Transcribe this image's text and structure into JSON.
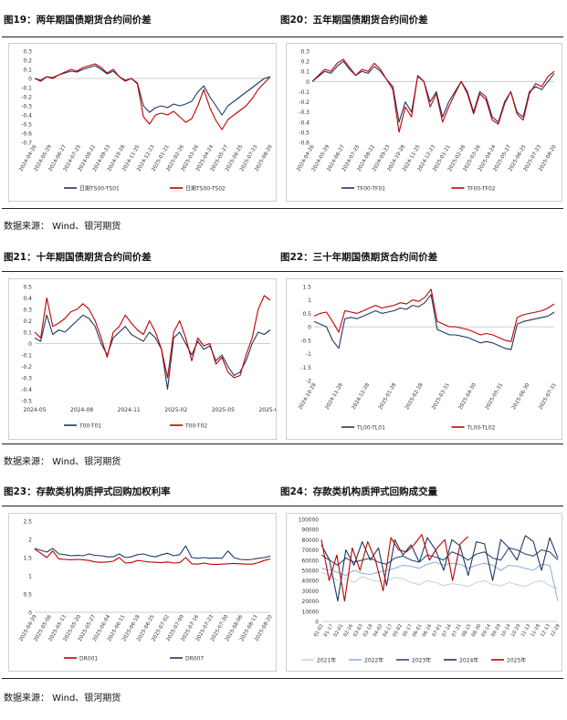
{
  "source_note": "数据来源： Wind、银河期货",
  "colors": {
    "navy": "#1f3864",
    "red": "#c00000",
    "zero": "#bfbfbf"
  },
  "chart_data": [
    {
      "id": "c19",
      "type": "line",
      "title": "图19：两年期国债期货合约间价差",
      "x_ticks": [
        "2024-04-26",
        "2024-05-29",
        "2024-06-27",
        "2024-07-25",
        "2024-08-22",
        "2024-09-23",
        "2024-10-28",
        "2024-11-25",
        "2024-12-23",
        "2025-01-21",
        "2025-02-26",
        "2025-03-26",
        "2025-04-24",
        "2025-05-27",
        "2025-06-25",
        "2025-07-23",
        "2025-08-20"
      ],
      "y_ticks": [
        0.3,
        0.2,
        0.1,
        0,
        -0.1,
        -0.2,
        -0.3,
        -0.4,
        -0.5,
        -0.6,
        -0.7
      ],
      "ylim": [
        -0.7,
        0.3
      ],
      "series": [
        {
          "name": "日期TS00-TS01",
          "color": "#1f3864",
          "values": [
            0,
            -0.02,
            0.02,
            0.01,
            0.04,
            0.06,
            0.08,
            0.07,
            0.1,
            0.12,
            0.14,
            0.1,
            0.05,
            0.08,
            0.02,
            -0.02,
            0.0,
            -0.05,
            -0.3,
            -0.37,
            -0.32,
            -0.3,
            -0.32,
            -0.28,
            -0.3,
            -0.28,
            -0.25,
            -0.15,
            -0.08,
            -0.2,
            -0.3,
            -0.4,
            -0.3,
            -0.25,
            -0.2,
            -0.15,
            -0.1,
            -0.05,
            0.0,
            0.02
          ]
        },
        {
          "name": "日期TS00-TS02",
          "color": "#c00000",
          "values": [
            0,
            -0.03,
            0.02,
            0.0,
            0.04,
            0.07,
            0.1,
            0.08,
            0.12,
            0.14,
            0.16,
            0.12,
            0.06,
            0.1,
            0.02,
            -0.03,
            0.0,
            -0.06,
            -0.42,
            -0.5,
            -0.4,
            -0.38,
            -0.4,
            -0.36,
            -0.42,
            -0.48,
            -0.44,
            -0.3,
            -0.12,
            -0.32,
            -0.46,
            -0.56,
            -0.45,
            -0.4,
            -0.35,
            -0.3,
            -0.22,
            -0.12,
            -0.05,
            0.02
          ]
        }
      ]
    },
    {
      "id": "c20",
      "type": "line",
      "title": "图20：五年期国债期货合约间价差",
      "x_ticks": [
        "2024-04-26",
        "2024-05-29",
        "2024-06-27",
        "2024-07-25",
        "2024-08-22",
        "2024-09-23",
        "2024-10-28",
        "2024-11-25",
        "2024-12-23",
        "2025-01-21",
        "2025-02-26",
        "2025-03-26",
        "2025-04-24",
        "2025-05-27",
        "2025-06-25",
        "2025-07-23",
        "2025-08-20"
      ],
      "y_ticks": [
        0.3,
        0.2,
        0.1,
        0,
        -0.1,
        -0.2,
        -0.3,
        -0.4,
        -0.5,
        -0.6
      ],
      "ylim": [
        -0.6,
        0.3
      ],
      "series": [
        {
          "name": "TF00-TF01",
          "color": "#1f3864",
          "values": [
            0,
            0.05,
            0.1,
            0.08,
            0.15,
            0.2,
            0.12,
            0.06,
            0.1,
            0.08,
            0.15,
            0.1,
            0.02,
            -0.05,
            -0.4,
            -0.2,
            -0.3,
            0.05,
            0.0,
            -0.2,
            -0.1,
            -0.35,
            -0.2,
            -0.1,
            0.0,
            -0.1,
            -0.3,
            -0.1,
            -0.15,
            -0.35,
            -0.4,
            -0.2,
            -0.1,
            -0.3,
            -0.35,
            -0.1,
            -0.05,
            -0.08,
            0.0,
            0.08
          ]
        },
        {
          "name": "TF00-TF02",
          "color": "#c00000",
          "values": [
            0,
            0.06,
            0.12,
            0.1,
            0.18,
            0.22,
            0.14,
            0.06,
            0.12,
            0.1,
            0.18,
            0.12,
            0.02,
            -0.08,
            -0.5,
            -0.25,
            -0.35,
            0.06,
            0.0,
            -0.25,
            -0.12,
            -0.4,
            -0.25,
            -0.12,
            0.0,
            -0.12,
            -0.32,
            -0.12,
            -0.18,
            -0.38,
            -0.42,
            -0.22,
            -0.1,
            -0.32,
            -0.38,
            -0.12,
            -0.02,
            -0.05,
            0.05,
            0.1
          ]
        }
      ]
    },
    {
      "id": "c21",
      "type": "line",
      "title": "图21：十年期国债期货合约间价差",
      "x_ticks": [
        "2024-05",
        "2024-08",
        "2024-11",
        "2025-02",
        "2025-05",
        "2025-08"
      ],
      "y_ticks": [
        0.5,
        0.4,
        0.3,
        0.2,
        0.1,
        0,
        -0.1,
        -0.2,
        -0.3,
        -0.4,
        -0.5
      ],
      "ylim": [
        -0.5,
        0.5
      ],
      "series": [
        {
          "name": "T00-T01",
          "color": "#1f3864",
          "values": [
            0.05,
            0.02,
            0.25,
            0.08,
            0.12,
            0.1,
            0.15,
            0.2,
            0.25,
            0.22,
            0.15,
            0.0,
            -0.1,
            0.05,
            0.1,
            0.15,
            0.08,
            0.05,
            0.02,
            0.1,
            0.05,
            -0.05,
            -0.4,
            0.05,
            0.1,
            0.0,
            -0.1,
            0.02,
            -0.05,
            -0.02,
            -0.15,
            -0.1,
            -0.2,
            -0.28,
            -0.25,
            -0.15,
            0.0,
            0.1,
            0.08,
            0.12
          ]
        },
        {
          "name": "T00-T02",
          "color": "#c00000",
          "values": [
            0.1,
            0.05,
            0.4,
            0.15,
            0.18,
            0.22,
            0.28,
            0.3,
            0.35,
            0.3,
            0.2,
            0.05,
            -0.12,
            0.1,
            0.15,
            0.25,
            0.18,
            0.12,
            0.08,
            0.2,
            0.1,
            -0.05,
            -0.3,
            0.1,
            0.2,
            0.05,
            -0.15,
            0.05,
            -0.02,
            0.0,
            -0.18,
            -0.12,
            -0.25,
            -0.3,
            -0.28,
            -0.1,
            0.05,
            0.3,
            0.42,
            0.38
          ]
        }
      ]
    },
    {
      "id": "c22",
      "type": "line",
      "title": "图22：三十年期国债期货合约间价差",
      "x_ticks": [
        "2024-10-28",
        "2024-11-28",
        "2024-12-28",
        "2025-01-28",
        "2025-02-28",
        "2025-03-31",
        "2025-04-30",
        "2025-05-31",
        "2025-06-30",
        "2025-07-31"
      ],
      "y_ticks": [
        1.5,
        1,
        0.5,
        0,
        -0.5,
        -1,
        -1.5,
        -2
      ],
      "ylim": [
        -2,
        1.5
      ],
      "series": [
        {
          "name": "TL00-TL01",
          "color": "#1f3864",
          "values": [
            0.2,
            0.1,
            0.0,
            -0.5,
            -0.8,
            0.3,
            0.35,
            0.3,
            0.4,
            0.5,
            0.6,
            0.5,
            0.55,
            0.6,
            0.7,
            0.65,
            0.8,
            0.75,
            0.9,
            1.2,
            -0.1,
            -0.2,
            -0.3,
            -0.3,
            -0.35,
            -0.4,
            -0.5,
            -0.6,
            -0.55,
            -0.6,
            -0.7,
            -0.8,
            -0.85,
            0.1,
            0.2,
            0.25,
            0.3,
            0.35,
            0.4,
            0.55
          ]
        },
        {
          "name": "TL00-TL02",
          "color": "#c00000",
          "values": [
            0.4,
            0.5,
            0.55,
            0.2,
            -0.2,
            0.6,
            0.55,
            0.5,
            0.6,
            0.7,
            0.8,
            0.7,
            0.75,
            0.8,
            0.9,
            0.85,
            1.0,
            0.95,
            1.1,
            1.4,
            0.2,
            0.1,
            0.0,
            0.0,
            -0.05,
            -0.1,
            -0.2,
            -0.3,
            -0.25,
            -0.3,
            -0.4,
            -0.5,
            -0.55,
            0.35,
            0.45,
            0.5,
            0.55,
            0.6,
            0.7,
            0.85
          ]
        }
      ]
    },
    {
      "id": "c23",
      "type": "line",
      "title": "图23：存款类机构质押式回购加权利率",
      "x_ticks": [
        "2025-04-29",
        "2025-05-06",
        "2025-05-13",
        "2025-05-20",
        "2025-05-27",
        "2025-06-04",
        "2025-06-11",
        "2025-06-18",
        "2025-06-25",
        "2025-07-02",
        "2025-07-09",
        "2025-07-16",
        "2025-07-23",
        "2025-07-30",
        "2025-08-06",
        "2025-08-13",
        "2025-08-20"
      ],
      "y_ticks": [
        2.5,
        2,
        1.5,
        1,
        0.5,
        0
      ],
      "ylim": [
        0,
        2.5
      ],
      "series": [
        {
          "name": "DR001",
          "color": "#c00000",
          "values": [
            1.73,
            1.62,
            1.5,
            1.68,
            1.46,
            1.45,
            1.44,
            1.45,
            1.44,
            1.42,
            1.38,
            1.37,
            1.38,
            1.4,
            1.5,
            1.35,
            1.36,
            1.42,
            1.4,
            1.38,
            1.37,
            1.36,
            1.38,
            1.35,
            1.36,
            1.5,
            1.33,
            1.32,
            1.35,
            1.32,
            1.31,
            1.32,
            1.33,
            1.34,
            1.33,
            1.32,
            1.32,
            1.36,
            1.42,
            1.46
          ]
        },
        {
          "name": "DR007",
          "color": "#1f3864",
          "values": [
            1.75,
            1.7,
            1.65,
            1.75,
            1.6,
            1.58,
            1.55,
            1.56,
            1.55,
            1.6,
            1.56,
            1.55,
            1.52,
            1.52,
            1.6,
            1.5,
            1.52,
            1.58,
            1.6,
            1.55,
            1.52,
            1.58,
            1.62,
            1.55,
            1.58,
            1.82,
            1.5,
            1.48,
            1.5,
            1.48,
            1.49,
            1.48,
            1.68,
            1.5,
            1.45,
            1.44,
            1.45,
            1.48,
            1.5,
            1.54
          ]
        }
      ]
    },
    {
      "id": "c24",
      "type": "line",
      "title": "图24：存款类机构质押式回购成交量",
      "x_ticks": [
        "01-02",
        "01-17",
        "02-01",
        "02-16",
        "03-03",
        "03-18",
        "04-02",
        "04-17",
        "05-02",
        "05-17",
        "06-01",
        "06-16",
        "07-01",
        "07-16",
        "07-31",
        "08-15",
        "08-30",
        "09-14",
        "09-29",
        "10-14",
        "10-29",
        "11-13",
        "11-28",
        "12-13",
        "12-28"
      ],
      "y_ticks": [
        100000,
        90000,
        80000,
        70000,
        60000,
        50000,
        40000,
        30000,
        20000,
        10000,
        0
      ],
      "ylim": [
        0,
        100000
      ],
      "series": [
        {
          "name": "2021年",
          "color": "#c9d3e6",
          "values": [
            48000,
            45000,
            40000,
            42000,
            38000,
            44000,
            41000,
            39000,
            40000,
            43000,
            42000,
            38000,
            36000,
            40000,
            38000,
            35000,
            37000,
            36000,
            34000,
            38000,
            40000,
            36000,
            35000,
            38000,
            36000,
            34000,
            38000,
            40000,
            35000,
            32000
          ]
        },
        {
          "name": "2022年",
          "color": "#8fb4de",
          "values": [
            52000,
            50000,
            48000,
            45000,
            50000,
            47000,
            46000,
            48000,
            50000,
            52000,
            55000,
            54000,
            52000,
            56000,
            58000,
            55000,
            57000,
            56000,
            52000,
            55000,
            57000,
            55000,
            50000,
            55000,
            54000,
            52000,
            50000,
            56000,
            55000,
            20000
          ]
        },
        {
          "name": "2023年",
          "color": "#2e4a7a",
          "values": [
            65000,
            60000,
            55000,
            62000,
            58000,
            60000,
            62000,
            58000,
            56000,
            62000,
            64000,
            60000,
            58000,
            65000,
            63000,
            60000,
            68000,
            65000,
            60000,
            66000,
            68000,
            62000,
            60000,
            72000,
            70000,
            66000,
            64000,
            70000,
            68000,
            60000
          ]
        },
        {
          "name": "2024年",
          "color": "#1f3864",
          "values": [
            75000,
            60000,
            20000,
            70000,
            55000,
            78000,
            60000,
            72000,
            35000,
            80000,
            65000,
            75000,
            58000,
            82000,
            70000,
            50000,
            80000,
            74000,
            45000,
            78000,
            76000,
            40000,
            80000,
            72000,
            60000,
            84000,
            78000,
            50000,
            82000,
            62000
          ]
        },
        {
          "name": "2025年",
          "color": "#c00000",
          "values": [
            80000,
            40000,
            65000,
            20000,
            72000,
            50000,
            78000,
            60000,
            30000,
            82000,
            70000,
            68000,
            75000,
            85000,
            60000,
            72000,
            80000,
            40000,
            76000,
            83000
          ]
        }
      ]
    }
  ]
}
